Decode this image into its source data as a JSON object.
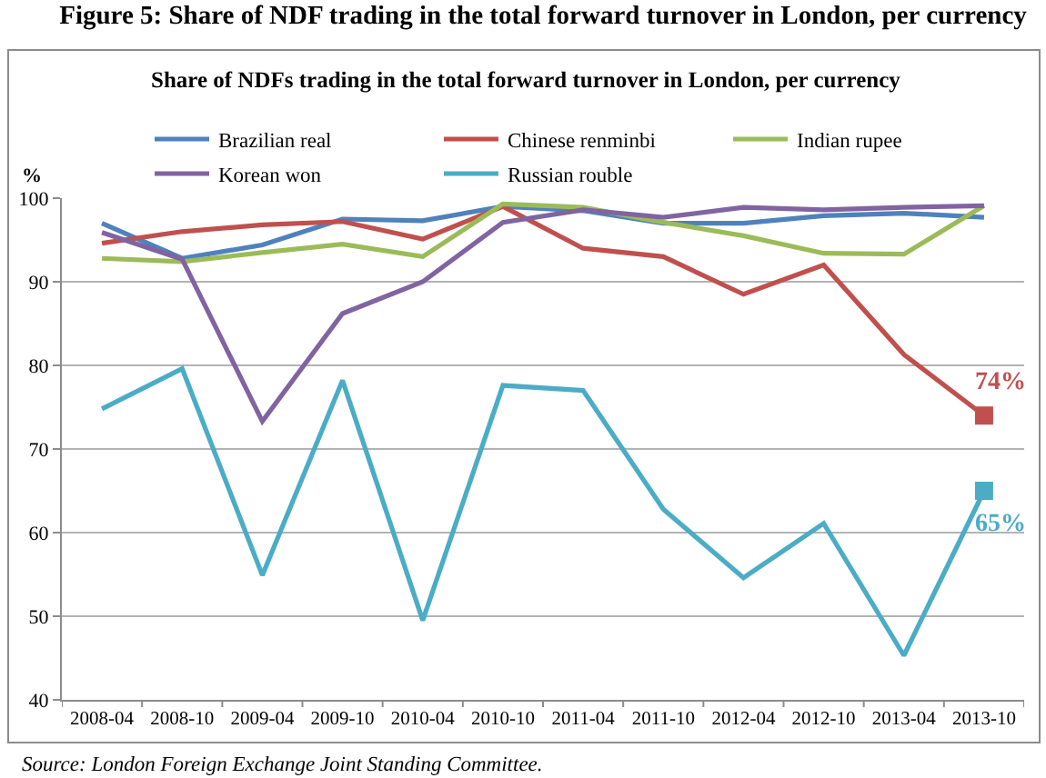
{
  "chart_data": {
    "type": "line",
    "title": "Figure 5: Share of NDF trading in the total forward turnover in London, per currency",
    "subtitle": "Share of NDFs trading in the total forward turnover in London, per currency",
    "ylabel": "%",
    "annotations": [
      "Source: London Foreign Exchange Joint Standing Committee."
    ],
    "categories": [
      "2008-04",
      "2008-10",
      "2009-04",
      "2009-10",
      "2010-04",
      "2010-10",
      "2011-04",
      "2011-10",
      "2012-04",
      "2012-10",
      "2013-04",
      "2013-10"
    ],
    "series": [
      {
        "name": "Brazilian real",
        "color": "#4f81bd",
        "values": [
          97.0,
          92.8,
          94.4,
          97.5,
          97.3,
          99.0,
          98.5,
          97.0,
          97.0,
          97.9,
          98.2,
          97.7
        ]
      },
      {
        "name": "Chinese renminbi",
        "color": "#c0504d",
        "values": [
          94.6,
          96.0,
          96.8,
          97.2,
          95.1,
          99.0,
          94.0,
          93.0,
          88.5,
          92.0,
          81.3,
          74
        ]
      },
      {
        "name": "Indian rupee",
        "color": "#9bbb59",
        "values": [
          92.8,
          92.4,
          93.5,
          94.5,
          93.0,
          99.3,
          98.9,
          97.1,
          95.5,
          93.4,
          93.3,
          99.1
        ]
      },
      {
        "name": "Korean won",
        "color": "#8064a2",
        "values": [
          95.9,
          92.7,
          73.3,
          86.2,
          90.0,
          97.1,
          98.6,
          97.7,
          98.9,
          98.6,
          98.9,
          99.1
        ]
      },
      {
        "name": "Russian rouble",
        "color": "#4bacc6",
        "values": [
          74.8,
          79.6,
          54.9,
          78.2,
          49.5,
          77.6,
          77.0,
          62.8,
          54.6,
          61.1,
          45.3,
          65
        ]
      },
      {
        "type": "scatter",
        "color": "#c0504d",
        "values": [
          null,
          null,
          null,
          null,
          null,
          null,
          null,
          null,
          null,
          null,
          null,
          74
        ],
        "marker": "square",
        "value_labels": [
          null,
          null,
          null,
          null,
          null,
          null,
          null,
          null,
          null,
          null,
          null,
          "74%"
        ]
      },
      {
        "type": "scatter",
        "color": "#4bacc6",
        "values": [
          null,
          null,
          null,
          null,
          null,
          null,
          null,
          null,
          null,
          null,
          null,
          65
        ],
        "marker": "square",
        "value_labels": [
          null,
          null,
          null,
          null,
          null,
          null,
          null,
          null,
          null,
          null,
          null,
          "65%"
        ]
      }
    ],
    "ylim": [
      40,
      100
    ],
    "yticks": [
      40,
      50,
      60,
      70,
      80,
      90,
      100
    ],
    "grid": "y",
    "legend": "top"
  }
}
